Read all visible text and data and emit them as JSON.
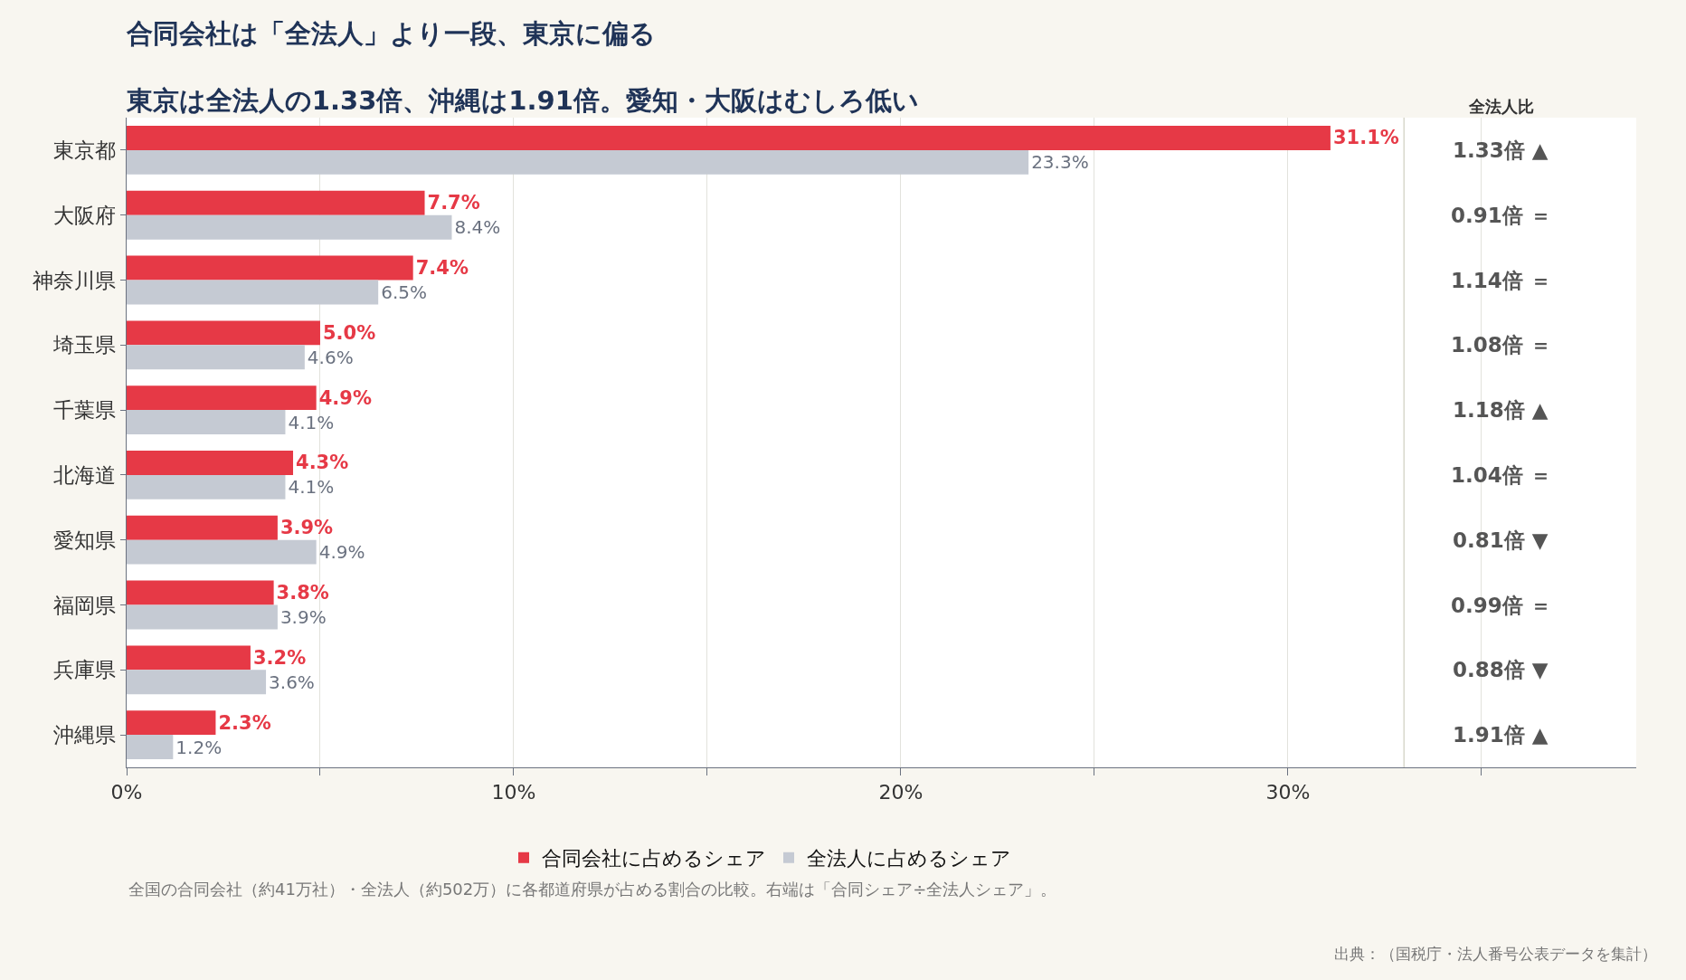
{
  "chart_data": {
    "type": "bar",
    "orientation": "horizontal",
    "title": "合同会社は「全法人」より一段、東京に偏る",
    "subtitle": "東京は全法人の1.33倍、沖縄は1.91倍。愛知・大阪はむしろ低い",
    "categories": [
      "東京都",
      "大阪府",
      "神奈川県",
      "埼玉県",
      "千葉県",
      "北海道",
      "愛知県",
      "福岡県",
      "兵庫県",
      "沖縄県"
    ],
    "series": [
      {
        "name": "合同会社に占めるシェア",
        "color": "#e63946",
        "values": [
          31.1,
          7.7,
          7.4,
          5.0,
          4.9,
          4.3,
          3.9,
          3.8,
          3.2,
          2.3
        ],
        "value_labels": [
          "31.1%",
          "7.7%",
          "7.4%",
          "5.0%",
          "4.9%",
          "4.3%",
          "3.9%",
          "3.8%",
          "3.2%",
          "2.3%"
        ]
      },
      {
        "name": "全法人に占めるシェア",
        "color": "#c5cad3",
        "values": [
          23.3,
          8.4,
          6.5,
          4.6,
          4.1,
          4.1,
          4.9,
          3.9,
          3.6,
          1.2
        ],
        "value_labels": [
          "23.3%",
          "8.4%",
          "6.5%",
          "4.6%",
          "4.1%",
          "4.1%",
          "4.9%",
          "3.9%",
          "3.6%",
          "1.2%"
        ]
      }
    ],
    "xlim": [
      0,
      39
    ],
    "xticks": [
      {
        "value": 0,
        "label": "0%"
      },
      {
        "value": 5,
        "label": null
      },
      {
        "value": 10,
        "label": "10%"
      },
      {
        "value": 15,
        "label": null
      },
      {
        "value": 20,
        "label": "20%"
      },
      {
        "value": 25,
        "label": null
      },
      {
        "value": 30,
        "label": "30%"
      },
      {
        "value": 35,
        "label": null
      }
    ],
    "grid": "x",
    "legend": "bottom",
    "ref_lines": [
      {
        "axis": "x",
        "value": 33,
        "color": "#d8d8cc"
      }
    ],
    "annotations": [
      "全法人比",
      "1.33倍 ▲",
      "0.91倍 ＝",
      "1.14倍 ＝",
      "1.08倍 ＝",
      "1.18倍 ▲",
      "1.04倍 ＝",
      "0.81倍 ▼",
      "0.99倍 ＝",
      "0.88倍 ▼",
      "1.91倍 ▲",
      "全国の合同会社（約41万社）・全法人（約502万）に各都道府県が占める割合の比較。右端は「合同シェア÷全法人シェア」。",
      "出典：（国税庁・法人番号公表データを集計）"
    ]
  }
}
